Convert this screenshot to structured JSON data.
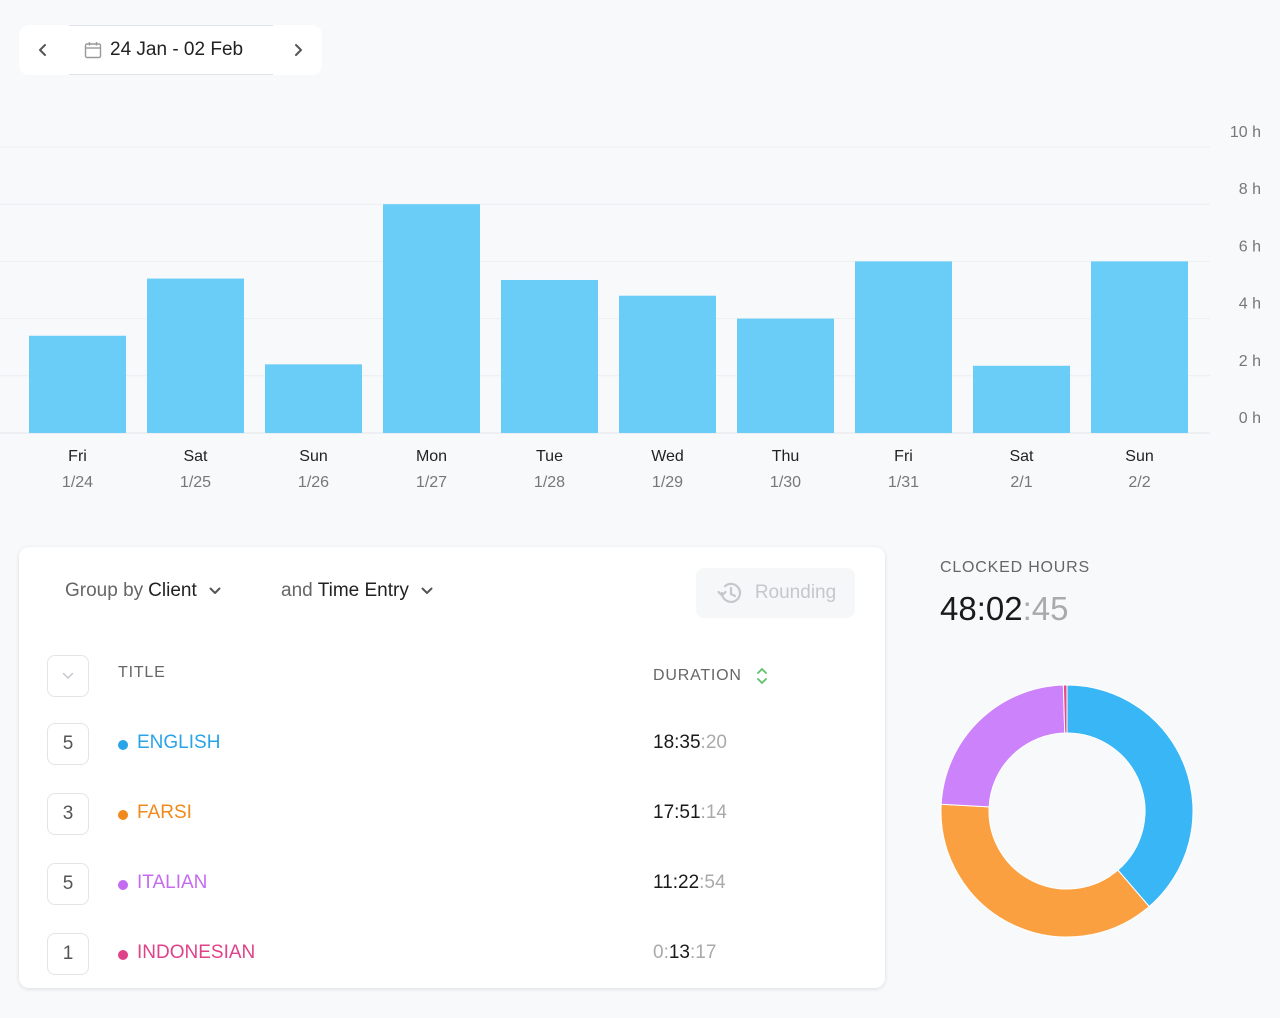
{
  "date_range": {
    "label": "24 Jan - 02 Feb"
  },
  "chart_data": {
    "type": "bar",
    "categories": [
      "Fri 1/24",
      "Sat 1/25",
      "Sun 1/26",
      "Mon 1/27",
      "Tue 1/28",
      "Wed 1/29",
      "Thu 1/30",
      "Fri 1/31",
      "Sat 2/1",
      "Sun 2/2"
    ],
    "day_labels": [
      "Fri",
      "Sat",
      "Sun",
      "Mon",
      "Tue",
      "Wed",
      "Thu",
      "Fri",
      "Sat",
      "Sun"
    ],
    "date_labels": [
      "1/24",
      "1/25",
      "1/26",
      "1/27",
      "1/28",
      "1/29",
      "1/30",
      "1/31",
      "2/1",
      "2/2"
    ],
    "values": [
      3.4,
      5.4,
      2.4,
      8.0,
      5.35,
      4.8,
      4.0,
      6.0,
      2.35,
      6.0
    ],
    "y_ticks": [
      "0 h",
      "2 h",
      "4 h",
      "6 h",
      "8 h",
      "10 h"
    ],
    "ylim": [
      0,
      10
    ],
    "ylabel": "",
    "xlabel": "",
    "title": "",
    "grid": true,
    "bar_color": "#6acdf8"
  },
  "toolbar": {
    "group1_prefix": "Group by",
    "group1_value": "Client",
    "group2_prefix": "and",
    "group2_value": "Time Entry",
    "rounding_label": "Rounding"
  },
  "table": {
    "col_title": "TITLE",
    "col_duration": "DURATION",
    "rows": [
      {
        "count": "5",
        "client": "ENGLISH",
        "color": "#2aa4e8",
        "dur_main": "18:35",
        "dur_sec": ":20",
        "dur_pre": ""
      },
      {
        "count": "3",
        "client": "FARSI",
        "color": "#f08a1c",
        "dur_main": "17:51",
        "dur_sec": ":14",
        "dur_pre": ""
      },
      {
        "count": "5",
        "client": "ITALIAN",
        "color": "#c46cf0",
        "dur_main": "11:22",
        "dur_sec": ":54",
        "dur_pre": ""
      },
      {
        "count": "1",
        "client": "INDONESIAN",
        "color": "#e0428a",
        "dur_main": "13",
        "dur_sec": ":17",
        "dur_pre": "0:"
      }
    ]
  },
  "clocked": {
    "label": "CLOCKED HOURS",
    "main": "48:02",
    "sec": ":45"
  },
  "donut": {
    "segments": [
      {
        "name": "ENGLISH",
        "value": 18.589,
        "color": "#38b6f5"
      },
      {
        "name": "FARSI",
        "value": 17.854,
        "color": "#fba040"
      },
      {
        "name": "ITALIAN",
        "value": 11.382,
        "color": "#cc82fb"
      },
      {
        "name": "INDONESIAN",
        "value": 0.221,
        "color": "#e94b8a"
      }
    ]
  }
}
